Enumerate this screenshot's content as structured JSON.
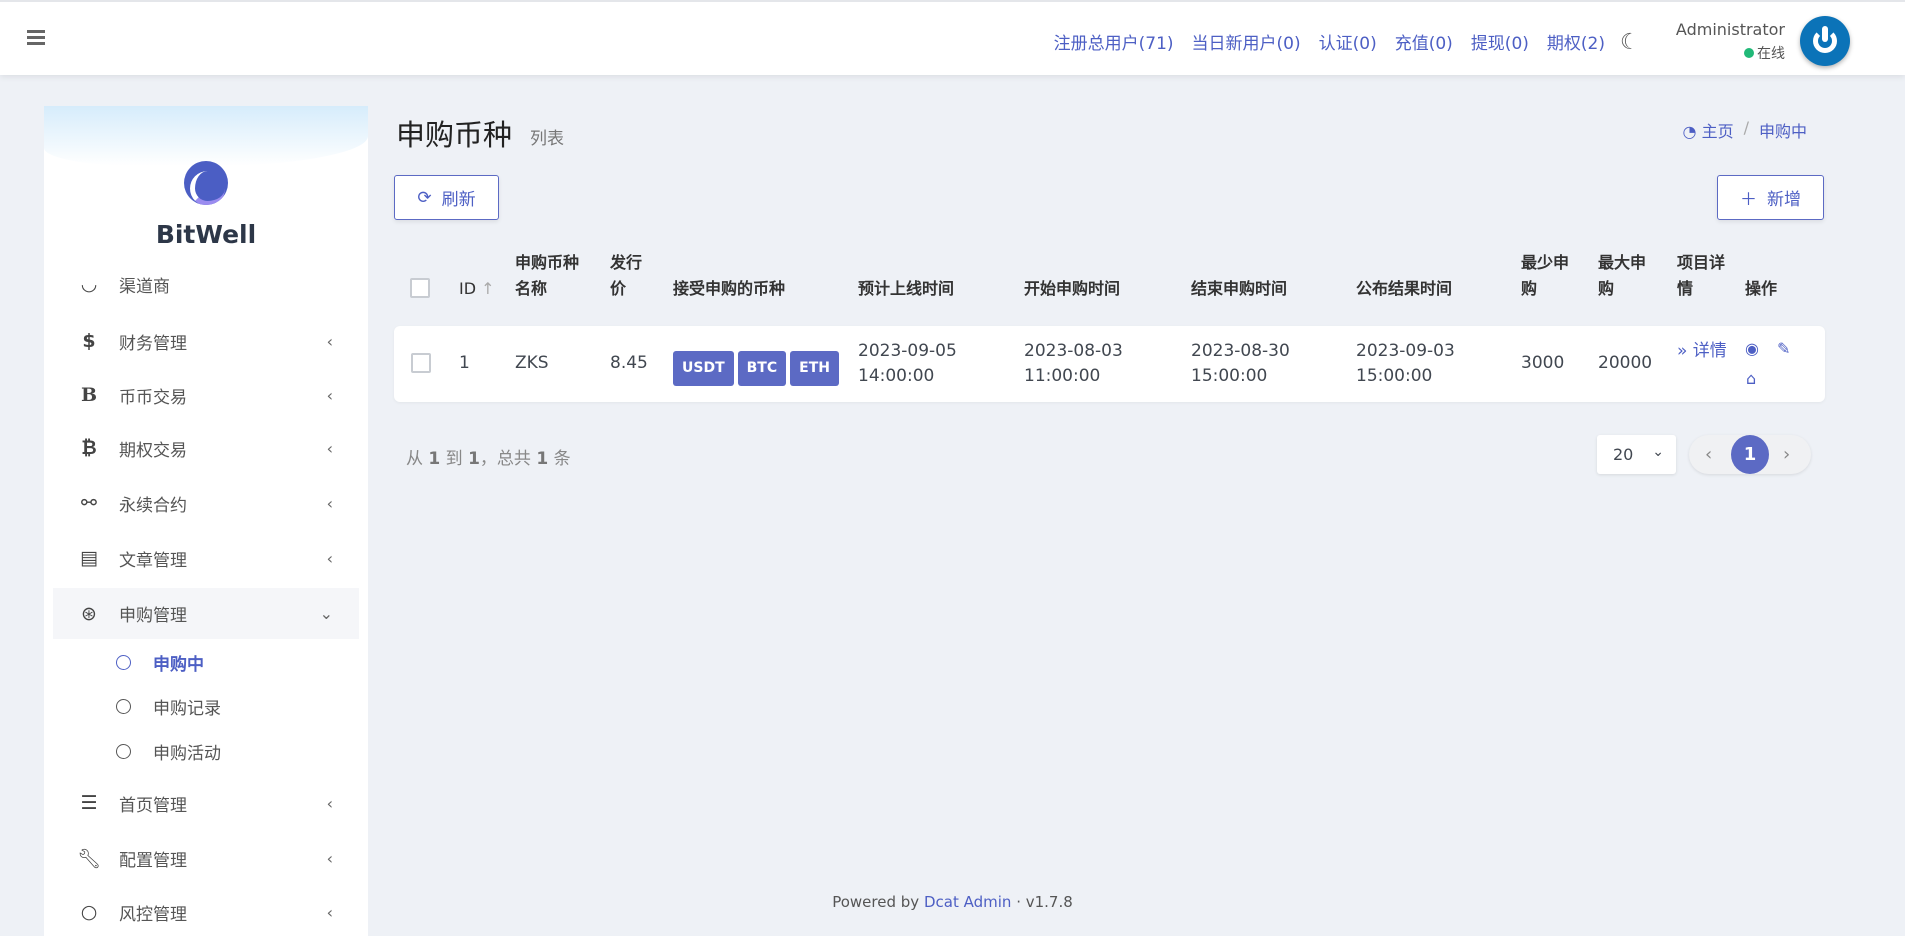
{
  "navbar": {
    "links": [
      "注册总用户(71)",
      "当日新用户(0)",
      "认证(0)",
      "充值(0)",
      "提现(0)",
      "期权(2)"
    ],
    "user": "Administrator",
    "status": "在线"
  },
  "sidebar": {
    "brand": "BitWell",
    "items": [
      {
        "label": "渠道商",
        "icon": "users-icon"
      },
      {
        "label": "财务管理",
        "icon": "dollar-icon"
      },
      {
        "label": "币币交易",
        "icon": "b-icon"
      },
      {
        "label": "期权交易",
        "icon": "bitcoin-icon"
      },
      {
        "label": "永续合约",
        "icon": "link-icon"
      },
      {
        "label": "文章管理",
        "icon": "newspaper-icon"
      },
      {
        "label": "申购管理",
        "icon": "lifebuoy-icon"
      },
      {
        "label": "首页管理",
        "icon": "list-icon"
      },
      {
        "label": "配置管理",
        "icon": "wrench-icon"
      },
      {
        "label": "风控管理",
        "icon": "circle-icon"
      }
    ],
    "subitems": [
      "申购中",
      "申购记录",
      "申购活动"
    ]
  },
  "page": {
    "title": "申购币种",
    "subtitle": "列表",
    "breadcrumb": [
      "主页",
      "申购中"
    ],
    "refresh": "刷新",
    "add": "新增"
  },
  "table": {
    "headers": [
      "ID",
      "申购币种名称",
      "发行价",
      "接受申购的币种",
      "预计上线时间",
      "开始申购时间",
      "结束申购时间",
      "公布结果时间",
      "最少申购",
      "最大申购",
      "项目详情",
      "操作"
    ],
    "rows": [
      {
        "id": "1",
        "name": "ZKS",
        "price": "8.45",
        "coins": [
          "USDT",
          "BTC",
          "ETH"
        ],
        "online": [
          "2023-09-05",
          "14:00:00"
        ],
        "start": [
          "2023-08-03",
          "11:00:00"
        ],
        "end": [
          "2023-08-30",
          "15:00:00"
        ],
        "publish": [
          "2023-09-03",
          "15:00:00"
        ],
        "min": "3000",
        "max": "20000",
        "detail": "» 详情"
      }
    ]
  },
  "pagination": {
    "from": "从",
    "a": "1",
    "to": "到",
    "b": "1",
    "total_pre": "，总共",
    "total": "1",
    "unit": "条",
    "per_page": "20",
    "current": "1"
  },
  "footer": {
    "powered": "Powered by",
    "link": "Dcat Admin",
    "version": "· v1.7.8"
  },
  "colors": {
    "accent": "#5c6ac4",
    "background": "#eef1f6",
    "online": "#21b978"
  }
}
